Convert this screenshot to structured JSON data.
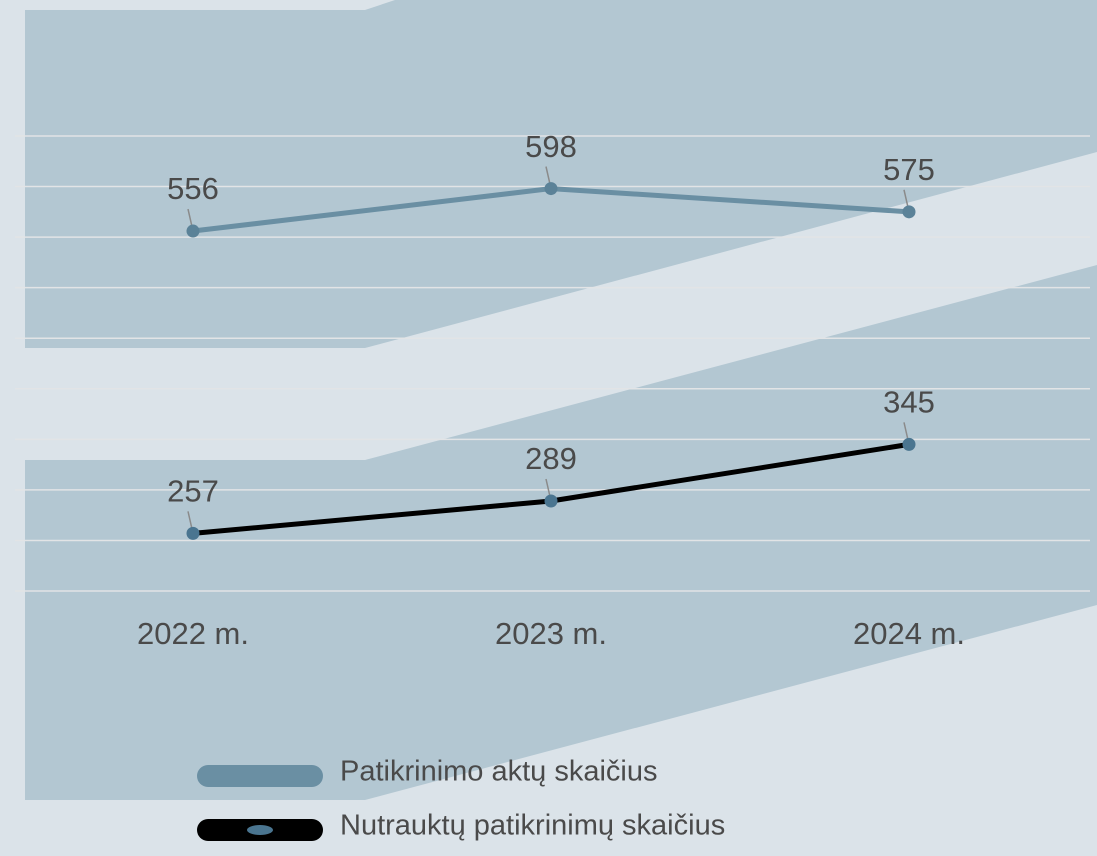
{
  "chart_data": {
    "type": "line",
    "categories": [
      "2022 m.",
      "2023 m.",
      "2024 m."
    ],
    "series": [
      {
        "name": "Patikrinimo aktų skaičius",
        "color": "#6a8fa3",
        "marker_color": "#5b8298",
        "values": [
          556,
          598,
          575
        ]
      },
      {
        "name": "Nutrauktų patikrinimų skaičius",
        "color": "#000000",
        "marker_color": "#4a7590",
        "values": [
          257,
          289,
          345
        ]
      }
    ],
    "ylim": [
      200,
      650
    ],
    "yticks": [
      200,
      250,
      300,
      350,
      400,
      450,
      500,
      550,
      600,
      650
    ],
    "grid": true,
    "legend": "bottom"
  }
}
